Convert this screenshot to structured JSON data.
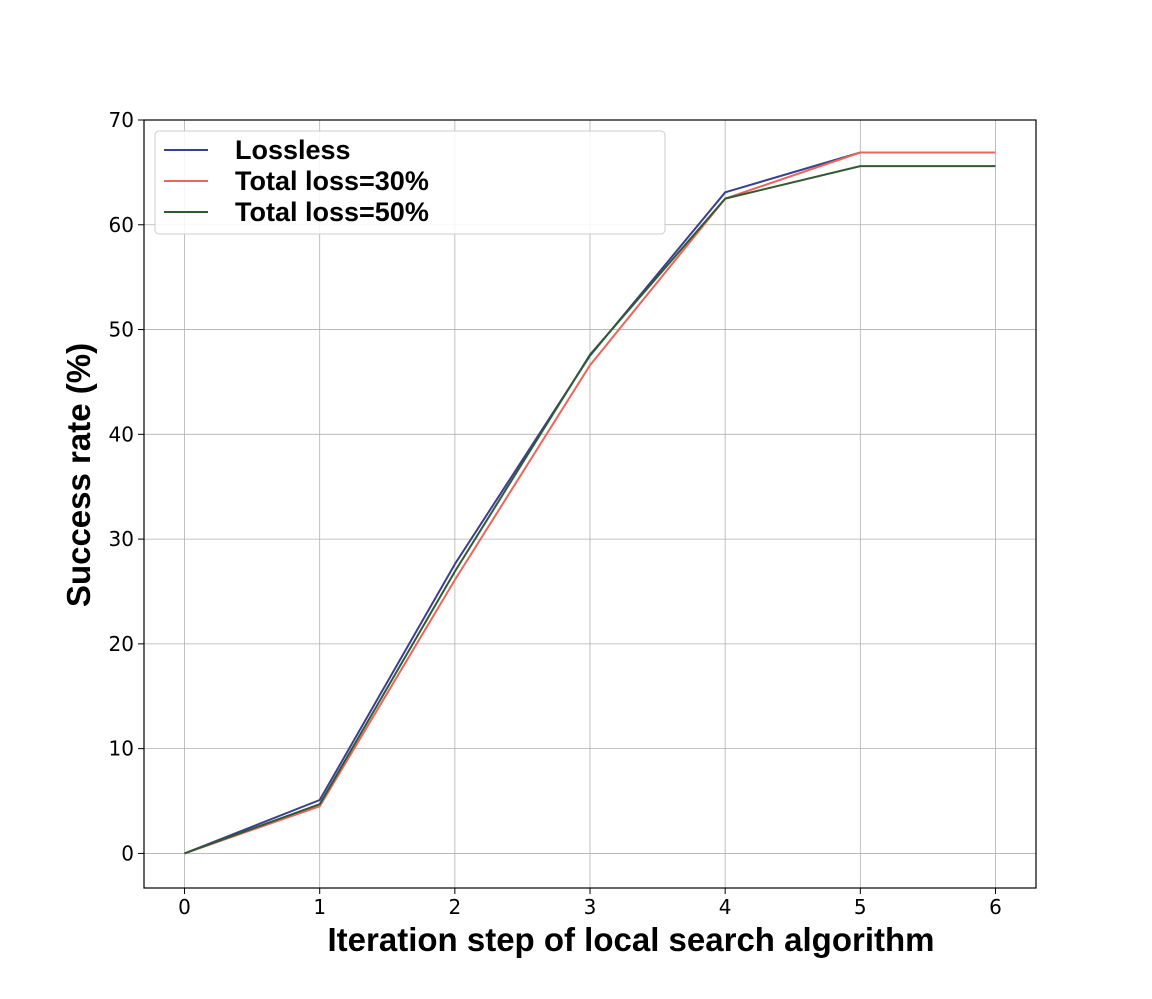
{
  "chart_data": {
    "type": "line",
    "title": "",
    "xlabel": "Iteration step of local search algorithm",
    "ylabel": "Success rate (%)",
    "x": [
      0,
      1,
      2,
      3,
      4,
      5,
      6
    ],
    "xticks": [
      "0",
      "1",
      "2",
      "3",
      "4",
      "5",
      "6"
    ],
    "yticks": [
      "0",
      "10",
      "20",
      "30",
      "40",
      "50",
      "60",
      "70"
    ],
    "xlim": [
      -0.3,
      6.3
    ],
    "ylim": [
      -3.3,
      70
    ],
    "grid": true,
    "legend_position": "top-left",
    "series": [
      {
        "name": "Lossless",
        "color": "#3b3f8f",
        "values": [
          0,
          5.1,
          27.6,
          47.5,
          63.1,
          66.9,
          66.9
        ]
      },
      {
        "name": "Total loss=30%",
        "color": "#e8675a",
        "values": [
          0,
          4.5,
          26.1,
          46.6,
          62.5,
          66.9,
          66.9
        ]
      },
      {
        "name": "Total loss=50%",
        "color": "#2f5a33",
        "values": [
          0,
          4.7,
          26.9,
          47.6,
          62.5,
          65.6,
          65.6
        ]
      }
    ]
  }
}
